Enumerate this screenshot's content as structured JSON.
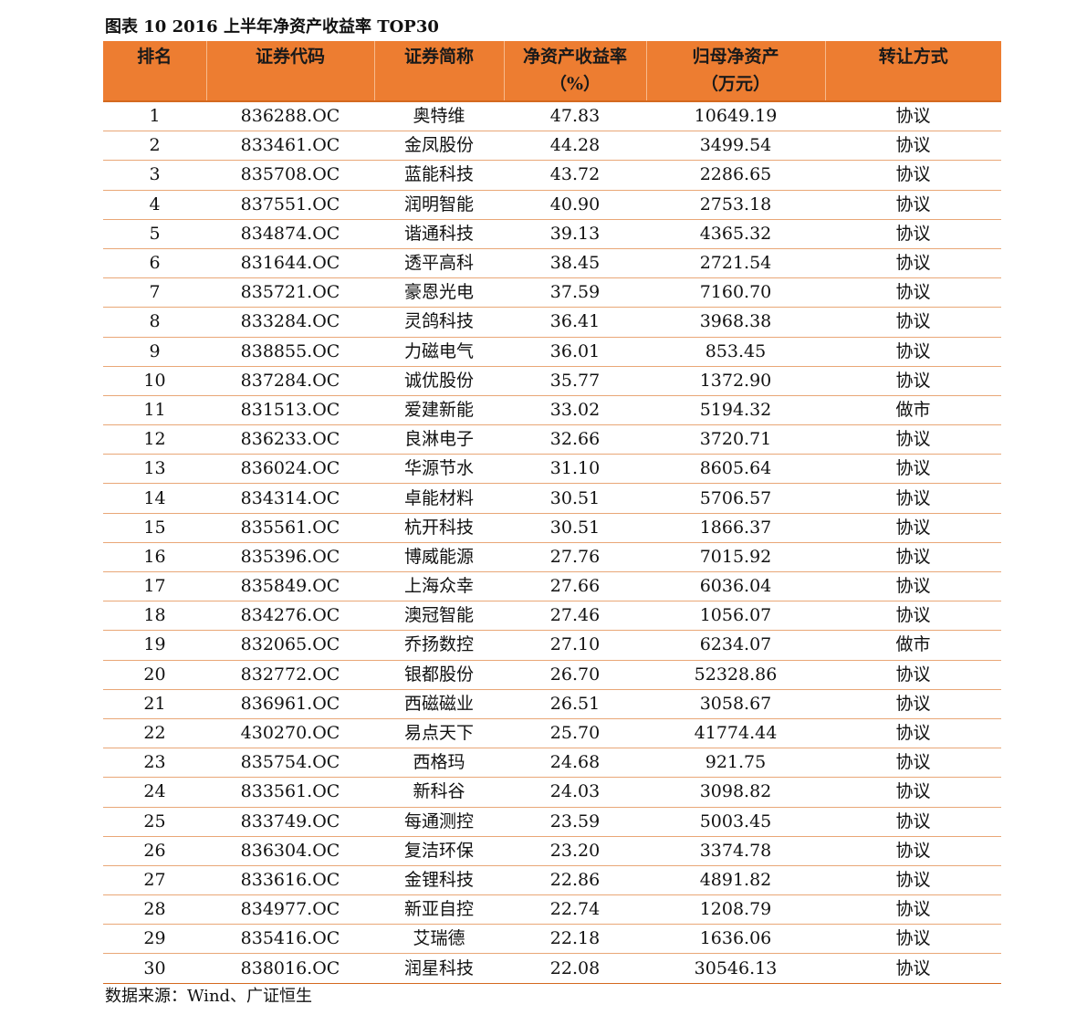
{
  "caption": "图表 10 2016 上半年净资产收益率 TOP30",
  "headers": {
    "rank": "排名",
    "code": "证券代码",
    "name": "证券简称",
    "roe_line1": "净资产收益率",
    "roe_line2": "（%）",
    "assets_line1": "归母净资产",
    "assets_line2": "（万元）",
    "method": "转让方式"
  },
  "rows": [
    {
      "rank": "1",
      "code": "836288.OC",
      "name": "奥特维",
      "roe": "47.83",
      "assets": "10649.19",
      "method": "协议"
    },
    {
      "rank": "2",
      "code": "833461.OC",
      "name": "金凤股份",
      "roe": "44.28",
      "assets": "3499.54",
      "method": "协议"
    },
    {
      "rank": "3",
      "code": "835708.OC",
      "name": "蓝能科技",
      "roe": "43.72",
      "assets": "2286.65",
      "method": "协议"
    },
    {
      "rank": "4",
      "code": "837551.OC",
      "name": "润明智能",
      "roe": "40.90",
      "assets": "2753.18",
      "method": "协议"
    },
    {
      "rank": "5",
      "code": "834874.OC",
      "name": "谐通科技",
      "roe": "39.13",
      "assets": "4365.32",
      "method": "协议"
    },
    {
      "rank": "6",
      "code": "831644.OC",
      "name": "透平高科",
      "roe": "38.45",
      "assets": "2721.54",
      "method": "协议"
    },
    {
      "rank": "7",
      "code": "835721.OC",
      "name": "豪恩光电",
      "roe": "37.59",
      "assets": "7160.70",
      "method": "协议"
    },
    {
      "rank": "8",
      "code": "833284.OC",
      "name": "灵鸽科技",
      "roe": "36.41",
      "assets": "3968.38",
      "method": "协议"
    },
    {
      "rank": "9",
      "code": "838855.OC",
      "name": "力磁电气",
      "roe": "36.01",
      "assets": "853.45",
      "method": "协议"
    },
    {
      "rank": "10",
      "code": "837284.OC",
      "name": "诚优股份",
      "roe": "35.77",
      "assets": "1372.90",
      "method": "协议"
    },
    {
      "rank": "11",
      "code": "831513.OC",
      "name": "爱建新能",
      "roe": "33.02",
      "assets": "5194.32",
      "method": "做市"
    },
    {
      "rank": "12",
      "code": "836233.OC",
      "name": "良淋电子",
      "roe": "32.66",
      "assets": "3720.71",
      "method": "协议"
    },
    {
      "rank": "13",
      "code": "836024.OC",
      "name": "华源节水",
      "roe": "31.10",
      "assets": "8605.64",
      "method": "协议"
    },
    {
      "rank": "14",
      "code": "834314.OC",
      "name": "卓能材料",
      "roe": "30.51",
      "assets": "5706.57",
      "method": "协议"
    },
    {
      "rank": "15",
      "code": "835561.OC",
      "name": "杭开科技",
      "roe": "30.51",
      "assets": "1866.37",
      "method": "协议"
    },
    {
      "rank": "16",
      "code": "835396.OC",
      "name": "博威能源",
      "roe": "27.76",
      "assets": "7015.92",
      "method": "协议"
    },
    {
      "rank": "17",
      "code": "835849.OC",
      "name": "上海众幸",
      "roe": "27.66",
      "assets": "6036.04",
      "method": "协议"
    },
    {
      "rank": "18",
      "code": "834276.OC",
      "name": "澳冠智能",
      "roe": "27.46",
      "assets": "1056.07",
      "method": "协议"
    },
    {
      "rank": "19",
      "code": "832065.OC",
      "name": "乔扬数控",
      "roe": "27.10",
      "assets": "6234.07",
      "method": "做市"
    },
    {
      "rank": "20",
      "code": "832772.OC",
      "name": "银都股份",
      "roe": "26.70",
      "assets": "52328.86",
      "method": "协议"
    },
    {
      "rank": "21",
      "code": "836961.OC",
      "name": "西磁磁业",
      "roe": "26.51",
      "assets": "3058.67",
      "method": "协议"
    },
    {
      "rank": "22",
      "code": "430270.OC",
      "name": "易点天下",
      "roe": "25.70",
      "assets": "41774.44",
      "method": "协议"
    },
    {
      "rank": "23",
      "code": "835754.OC",
      "name": "西格玛",
      "roe": "24.68",
      "assets": "921.75",
      "method": "协议"
    },
    {
      "rank": "24",
      "code": "833561.OC",
      "name": "新科谷",
      "roe": "24.03",
      "assets": "3098.82",
      "method": "协议"
    },
    {
      "rank": "25",
      "code": "833749.OC",
      "name": "每通测控",
      "roe": "23.59",
      "assets": "5003.45",
      "method": "协议"
    },
    {
      "rank": "26",
      "code": "836304.OC",
      "name": "复洁环保",
      "roe": "23.20",
      "assets": "3374.78",
      "method": "协议"
    },
    {
      "rank": "27",
      "code": "833616.OC",
      "name": "金锂科技",
      "roe": "22.86",
      "assets": "4891.82",
      "method": "协议"
    },
    {
      "rank": "28",
      "code": "834977.OC",
      "name": "新亚自控",
      "roe": "22.74",
      "assets": "1208.79",
      "method": "协议"
    },
    {
      "rank": "29",
      "code": "835416.OC",
      "name": "艾瑞德",
      "roe": "22.18",
      "assets": "1636.06",
      "method": "协议"
    },
    {
      "rank": "30",
      "code": "838016.OC",
      "name": "润星科技",
      "roe": "22.08",
      "assets": "30546.13",
      "method": "协议"
    }
  ],
  "source": "数据来源：Wind、广证恒生",
  "colors": {
    "header_bg": "#ed7d31",
    "row_border": "#e9a777"
  }
}
